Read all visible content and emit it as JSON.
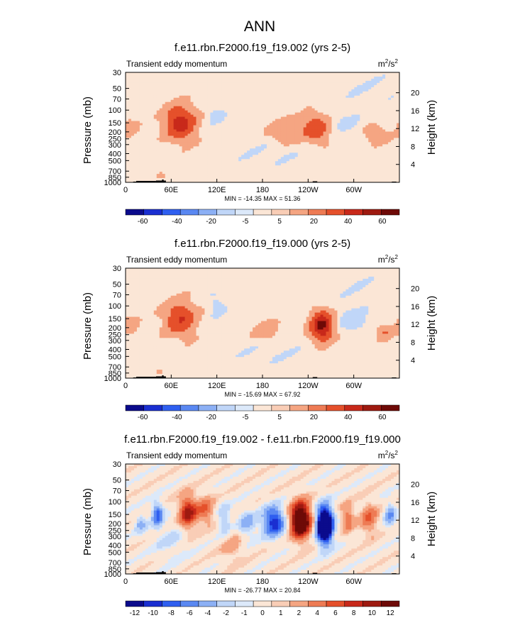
{
  "figure": {
    "title": "ANN"
  },
  "chart_data": [
    {
      "type": "heatmap",
      "title": "f.e11.rbn.F2000.f19_f19.002 (yrs 2-5)",
      "subtitle": "Transient eddy momentum",
      "units": "m²/s²",
      "ylabel": "Pressure (mb)",
      "ylabel_right": "Height (km)",
      "x_ticks": [
        "0",
        "60E",
        "120E",
        "180",
        "120W",
        "60W"
      ],
      "y_ticks": [
        "30",
        "50",
        "70",
        "100",
        "150",
        "200",
        "250",
        "300",
        "400",
        "500",
        "700",
        "850",
        "1000"
      ],
      "y_ticks_right": [
        "20",
        "16",
        "12",
        "8",
        "4"
      ],
      "stats": "MIN = -14.35  MAX = 51.36",
      "min": -14.35,
      "max": 51.36,
      "levels": [
        "-60",
        "-40",
        "-20",
        "-5",
        "5",
        "20",
        "40",
        "60"
      ],
      "colorbar": [
        "#0b0b8c",
        "#1a2fd1",
        "#2f5ff0",
        "#5a88f2",
        "#8cb0f5",
        "#c0d6f8",
        "#dce9fa",
        "#fbe6d6",
        "#f9cdb6",
        "#f5a582",
        "#ee7b54",
        "#e5502b",
        "#c8291a",
        "#9e1a10",
        "#6e0a07"
      ],
      "blobs": [
        {
          "lon": 72,
          "lev": 150,
          "amp": 51,
          "dlon": 14,
          "dlev": 55
        },
        {
          "lon": 210,
          "lev": 200,
          "amp": 20,
          "dlon": 14,
          "dlev": 50
        },
        {
          "lon": 250,
          "lev": 180,
          "amp": 35,
          "dlon": 12,
          "dlev": 55
        },
        {
          "lon": 330,
          "lev": 220,
          "amp": 22,
          "dlon": 10,
          "dlev": 40
        },
        {
          "lon": 5,
          "lev": 170,
          "amp": 12,
          "dlon": 8,
          "dlev": 40
        },
        {
          "lon": 47,
          "lev": 820,
          "amp": 18,
          "dlon": 4,
          "dlev": 60
        },
        {
          "lon": 118,
          "lev": 115,
          "amp": -10,
          "dlon": 8,
          "dlev": 25
        },
        {
          "lon": 290,
          "lev": 150,
          "amp": -8,
          "dlon": 12,
          "dlev": 35
        },
        {
          "lon": 190,
          "lev": 400,
          "amp": -4,
          "dlon": 40,
          "dlev": 120
        },
        {
          "lon": 320,
          "lev": 50,
          "amp": -4,
          "dlon": 30,
          "dlev": 20
        }
      ]
    },
    {
      "type": "heatmap",
      "title": "f.e11.rbn.F2000.f19_f19.000 (yrs 2-5)",
      "subtitle": "Transient eddy momentum",
      "units": "m²/s²",
      "ylabel": "Pressure (mb)",
      "ylabel_right": "Height (km)",
      "x_ticks": [
        "0",
        "60E",
        "120E",
        "180",
        "120W",
        "60W"
      ],
      "y_ticks": [
        "30",
        "50",
        "70",
        "100",
        "150",
        "200",
        "250",
        "300",
        "400",
        "500",
        "700",
        "850",
        "1000"
      ],
      "y_ticks_right": [
        "20",
        "16",
        "12",
        "8",
        "4"
      ],
      "stats": "MIN = -15.69  MAX = 67.92",
      "min": -15.69,
      "max": 67.92,
      "levels": [
        "-60",
        "-40",
        "-20",
        "-5",
        "5",
        "20",
        "40",
        "60"
      ],
      "colorbar": [
        "#0b0b8c",
        "#1a2fd1",
        "#2f5ff0",
        "#5a88f2",
        "#8cb0f5",
        "#c0d6f8",
        "#dce9fa",
        "#fbe6d6",
        "#f9cdb6",
        "#f5a582",
        "#ee7b54",
        "#e5502b",
        "#c8291a",
        "#9e1a10",
        "#6e0a07"
      ],
      "blobs": [
        {
          "lon": 72,
          "lev": 150,
          "amp": 40,
          "dlon": 14,
          "dlev": 55
        },
        {
          "lon": 185,
          "lev": 220,
          "amp": 15,
          "dlon": 12,
          "dlev": 50
        },
        {
          "lon": 258,
          "lev": 190,
          "amp": 68,
          "dlon": 10,
          "dlev": 60
        },
        {
          "lon": 340,
          "lev": 230,
          "amp": 20,
          "dlon": 8,
          "dlev": 40
        },
        {
          "lon": 5,
          "lev": 180,
          "amp": 14,
          "dlon": 8,
          "dlev": 40
        },
        {
          "lon": 45,
          "lev": 830,
          "amp": 16,
          "dlon": 4,
          "dlev": 60
        },
        {
          "lon": 120,
          "lev": 100,
          "amp": -10,
          "dlon": 8,
          "dlev": 25
        },
        {
          "lon": 300,
          "lev": 160,
          "amp": -14,
          "dlon": 14,
          "dlev": 40
        },
        {
          "lon": 190,
          "lev": 450,
          "amp": -4,
          "dlon": 40,
          "dlev": 120
        },
        {
          "lon": 300,
          "lev": 50,
          "amp": -4,
          "dlon": 25,
          "dlev": 20
        }
      ]
    },
    {
      "type": "heatmap",
      "title": "f.e11.rbn.F2000.f19_f19.002 - f.e11.rbn.F2000.f19_f19.000",
      "subtitle": "Transient eddy momentum",
      "units": "m²/s²",
      "ylabel": "Pressure (mb)",
      "ylabel_right": "Height (km)",
      "x_ticks": [
        "0",
        "60E",
        "120E",
        "180",
        "120W",
        "60W"
      ],
      "y_ticks": [
        "30",
        "50",
        "70",
        "100",
        "150",
        "200",
        "250",
        "300",
        "400",
        "500",
        "700",
        "850",
        "1000"
      ],
      "y_ticks_right": [
        "20",
        "16",
        "12",
        "8",
        "4"
      ],
      "stats": "MIN = -26.77  MAX = 20.84",
      "min": -26.77,
      "max": 20.84,
      "levels": [
        "-12",
        "-10",
        "-8",
        "-6",
        "-4",
        "-2",
        "-1",
        "0",
        "1",
        "2",
        "4",
        "6",
        "8",
        "10",
        "12"
      ],
      "colorbar": [
        "#0b0b8c",
        "#1a2fd1",
        "#2f5ff0",
        "#5a88f2",
        "#8cb0f5",
        "#c0d6f8",
        "#dce9fa",
        "#fbe6d6",
        "#f9cdb6",
        "#f5a582",
        "#ee7b54",
        "#e5502b",
        "#c8291a",
        "#9e1a10",
        "#6e0a07"
      ],
      "blobs": [
        {
          "lon": 82,
          "lev": 140,
          "amp": 11,
          "dlon": 8,
          "dlev": 50
        },
        {
          "lon": 105,
          "lev": 130,
          "amp": 6,
          "dlon": 8,
          "dlev": 40
        },
        {
          "lon": 42,
          "lev": 150,
          "amp": -9,
          "dlon": 5,
          "dlev": 40
        },
        {
          "lon": 20,
          "lev": 200,
          "amp": -5,
          "dlon": 5,
          "dlev": 40
        },
        {
          "lon": 130,
          "lev": 180,
          "amp": -4,
          "dlon": 6,
          "dlev": 60
        },
        {
          "lon": 160,
          "lev": 200,
          "amp": -5,
          "dlon": 8,
          "dlev": 60
        },
        {
          "lon": 195,
          "lev": 190,
          "amp": -12,
          "dlon": 10,
          "dlev": 60
        },
        {
          "lon": 230,
          "lev": 180,
          "amp": 20,
          "dlon": 9,
          "dlev": 70
        },
        {
          "lon": 262,
          "lev": 210,
          "amp": -26,
          "dlon": 7,
          "dlev": 80
        },
        {
          "lon": 292,
          "lev": 170,
          "amp": 6,
          "dlon": 6,
          "dlev": 50
        },
        {
          "lon": 320,
          "lev": 170,
          "amp": 6,
          "dlon": 8,
          "dlev": 60
        },
        {
          "lon": 348,
          "lev": 150,
          "amp": -6,
          "dlon": 5,
          "dlev": 40
        },
        {
          "lon": 140,
          "lev": 420,
          "amp": 3,
          "dlon": 10,
          "dlev": 150
        },
        {
          "lon": 60,
          "lev": 350,
          "amp": -2,
          "dlon": 15,
          "dlev": 150
        }
      ]
    }
  ]
}
